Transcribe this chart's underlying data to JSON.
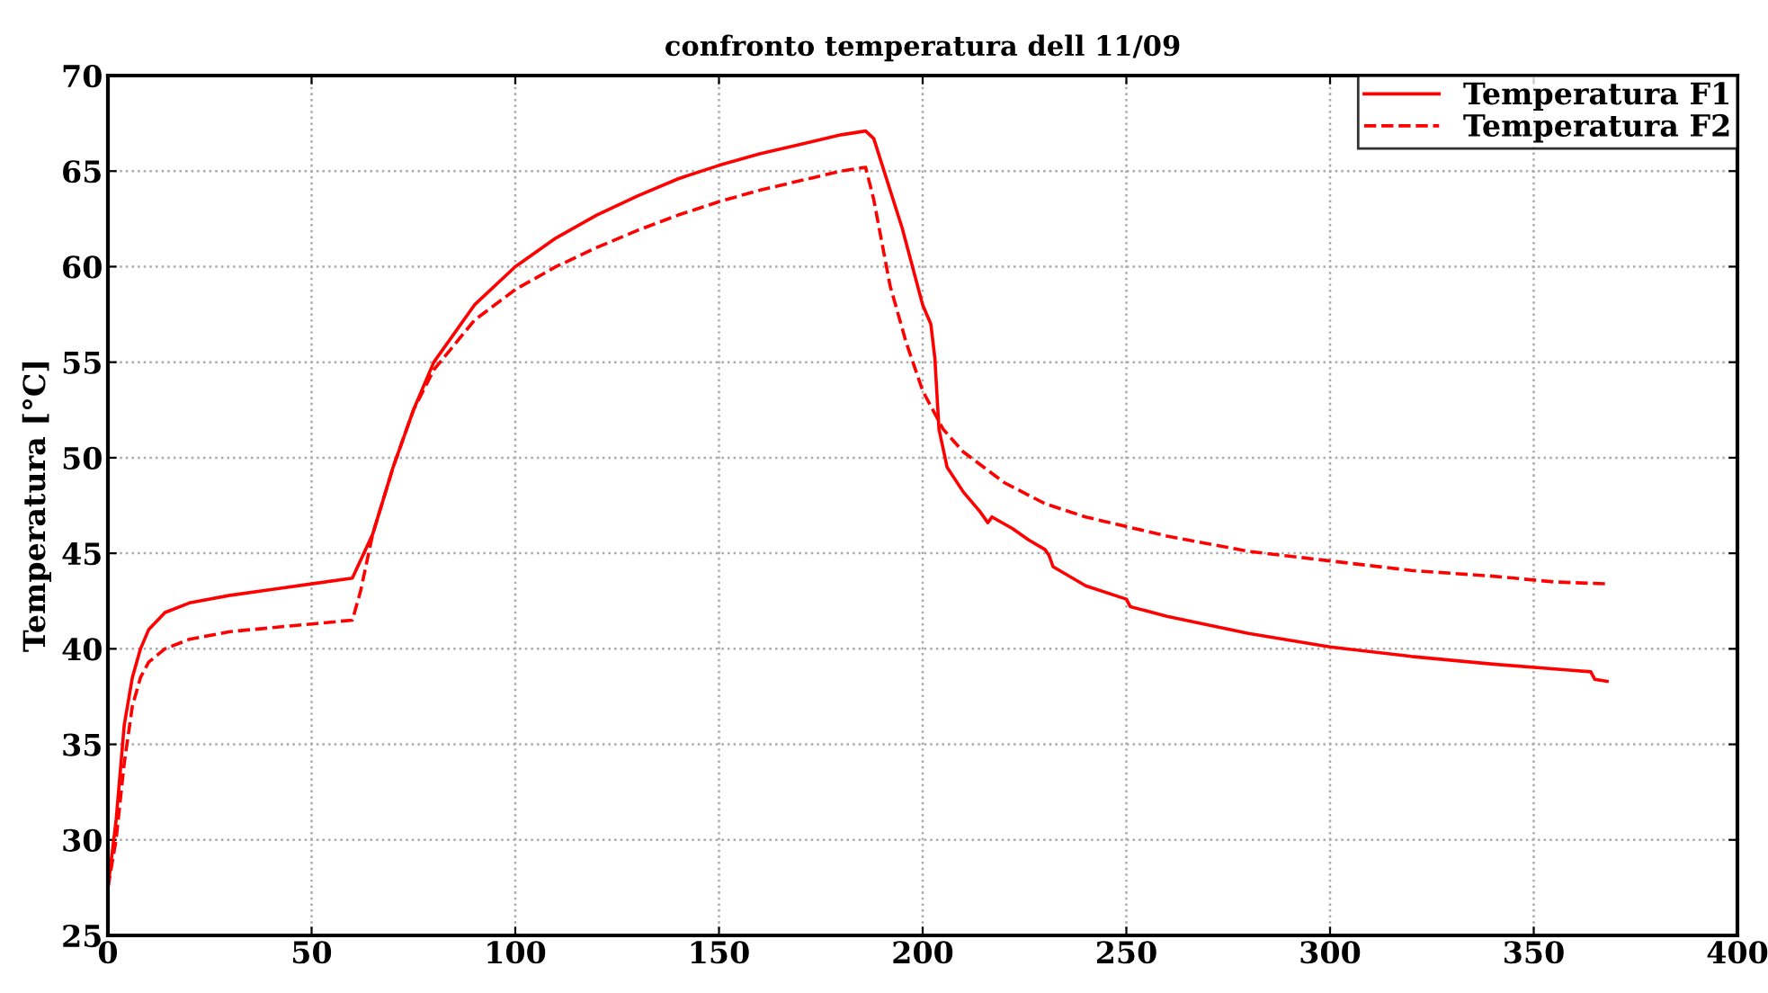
{
  "chart_data": {
    "type": "line",
    "title": "confronto temperatura dell 11/09",
    "ylabel": "Temperatura [°C]",
    "xlim": [
      0,
      400
    ],
    "ylim": [
      25,
      70
    ],
    "xticks": [
      0,
      50,
      100,
      150,
      200,
      250,
      300,
      350,
      400
    ],
    "yticks": [
      25,
      30,
      35,
      40,
      45,
      50,
      55,
      60,
      65,
      70
    ],
    "grid": true,
    "legend": "top right",
    "series": [
      {
        "name": "Temperatura F1",
        "color": "#ff0000",
        "line_style": "solid",
        "x": [
          0,
          2,
          4,
          6,
          8,
          10,
          14,
          20,
          30,
          40,
          50,
          60,
          65,
          70,
          75,
          80,
          90,
          100,
          110,
          120,
          130,
          140,
          150,
          160,
          170,
          180,
          186,
          188,
          195,
          200,
          202,
          203,
          204,
          206,
          210,
          214,
          216,
          217,
          222,
          226,
          230,
          231,
          232,
          240,
          250,
          251,
          260,
          280,
          300,
          320,
          340,
          358,
          364,
          365,
          368
        ],
        "values": [
          27.5,
          31,
          36,
          38.5,
          40,
          41,
          41.9,
          42.4,
          42.8,
          43.1,
          43.4,
          43.7,
          46,
          49.5,
          52.5,
          55,
          58,
          60,
          61.5,
          62.7,
          63.7,
          64.6,
          65.3,
          65.9,
          66.4,
          66.9,
          67.1,
          66.7,
          62,
          58,
          57,
          55.2,
          51.5,
          49.5,
          48.2,
          47.2,
          46.6,
          46.9,
          46.3,
          45.7,
          45.2,
          44.9,
          44.3,
          43.3,
          42.6,
          42.2,
          41.7,
          40.8,
          40.1,
          39.6,
          39.2,
          38.9,
          38.8,
          38.4,
          38.3
        ]
      },
      {
        "name": "Temperatura F2",
        "color": "#ff0000",
        "line_style": "dashed",
        "x": [
          0,
          2,
          4,
          6,
          8,
          10,
          14,
          20,
          30,
          40,
          50,
          60,
          62,
          65,
          70,
          75,
          80,
          90,
          100,
          110,
          120,
          130,
          140,
          150,
          160,
          170,
          180,
          186,
          188,
          192,
          196,
          200,
          205,
          210,
          220,
          230,
          240,
          250,
          260,
          280,
          300,
          320,
          340,
          355,
          368
        ],
        "values": [
          27.5,
          30,
          34,
          37,
          38.5,
          39.3,
          40,
          40.5,
          40.9,
          41.1,
          41.3,
          41.5,
          43,
          46,
          49.5,
          52.5,
          54.6,
          57.2,
          58.8,
          60,
          61,
          61.9,
          62.7,
          63.4,
          64,
          64.5,
          65,
          65.2,
          63.5,
          59,
          56,
          53.5,
          51.5,
          50.3,
          48.7,
          47.6,
          46.9,
          46.4,
          45.9,
          45.1,
          44.6,
          44.1,
          43.8,
          43.5,
          43.4
        ]
      }
    ]
  }
}
